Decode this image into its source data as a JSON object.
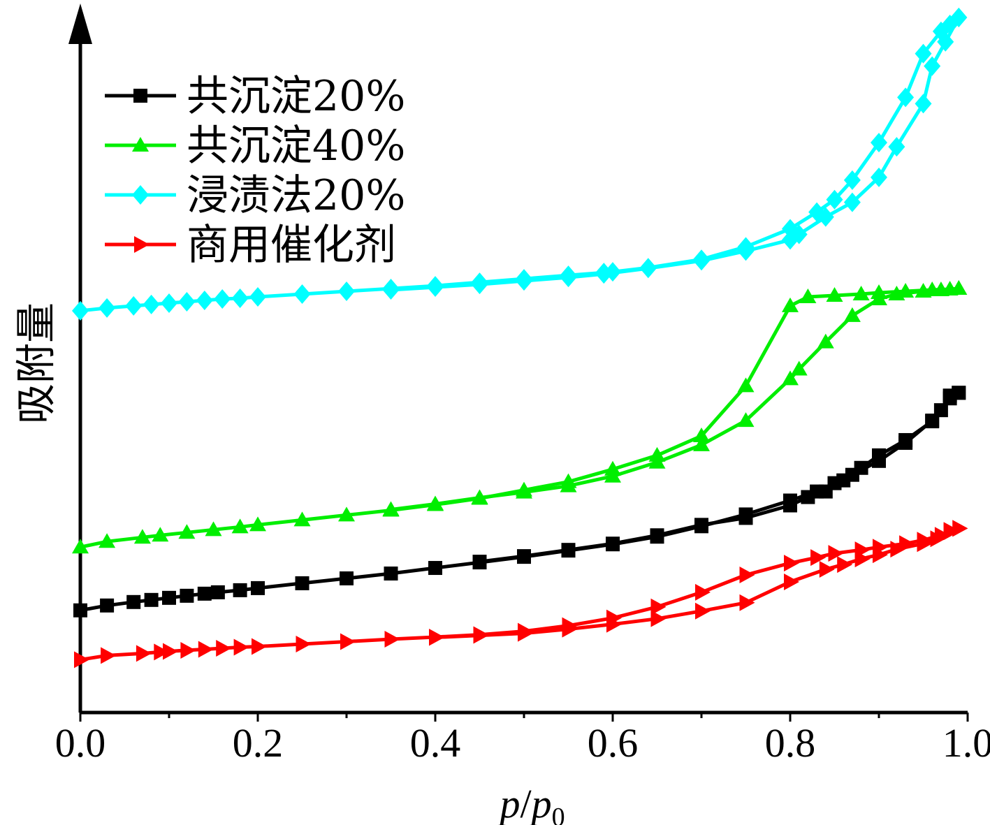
{
  "chart_data": {
    "type": "line",
    "xlabel": {
      "italic_p": "p",
      "slash": "/",
      "italic_p0": "p",
      "subscript": "0"
    },
    "ylabel": "吸附量",
    "xlim": [
      0,
      1.0
    ],
    "ylim": [
      0,
      100
    ],
    "y_ticks_shown": false,
    "x_ticks": [
      0.0,
      0.2,
      0.4,
      0.6,
      0.8,
      1.0
    ],
    "x_tick_labels": [
      "0.0",
      "0.2",
      "0.4",
      "0.6",
      "0.8",
      "1.0"
    ],
    "legend_position": "top-left",
    "series": [
      {
        "name": "共沉淀20%",
        "color": "#000000",
        "marker": "square",
        "adsorption": {
          "x": [
            0.0,
            0.03,
            0.06,
            0.08,
            0.1,
            0.12,
            0.14,
            0.155,
            0.18,
            0.2,
            0.25,
            0.3,
            0.35,
            0.4,
            0.45,
            0.5,
            0.55,
            0.6,
            0.65,
            0.7,
            0.75,
            0.8,
            0.83,
            0.85,
            0.87,
            0.9,
            0.93,
            0.96,
            0.98,
            0.99
          ],
          "y": [
            14.7,
            15.4,
            15.9,
            16.2,
            16.5,
            16.8,
            17.1,
            17.3,
            17.6,
            17.9,
            18.6,
            19.3,
            20.0,
            20.8,
            21.6,
            22.4,
            23.3,
            24.2,
            25.3,
            26.8,
            28.5,
            30.5,
            31.8,
            33.0,
            34.2,
            36.2,
            38.8,
            42.0,
            45.2,
            46.0
          ]
        },
        "desorption": {
          "x": [
            0.99,
            0.98,
            0.97,
            0.96,
            0.93,
            0.9,
            0.88,
            0.86,
            0.84,
            0.82,
            0.8,
            0.75,
            0.7,
            0.65,
            0.6,
            0.55,
            0.5,
            0.45
          ],
          "y": [
            46.0,
            45.6,
            43.5,
            41.9,
            39.2,
            37.0,
            35.2,
            33.4,
            31.8,
            31.0,
            29.8,
            28.0,
            27.0,
            25.5,
            24.3,
            23.4,
            22.5,
            21.7
          ]
        }
      },
      {
        "name": "共沉淀40%",
        "color": "#00ee00",
        "marker": "triangle-up",
        "adsorption": {
          "x": [
            0.0,
            0.03,
            0.07,
            0.09,
            0.12,
            0.15,
            0.18,
            0.2,
            0.25,
            0.3,
            0.35,
            0.4,
            0.45,
            0.5,
            0.55,
            0.6,
            0.65,
            0.7,
            0.75,
            0.8,
            0.82,
            0.85,
            0.88,
            0.9,
            0.93,
            0.96,
            0.98,
            0.99
          ],
          "y": [
            23.8,
            24.6,
            25.2,
            25.5,
            25.9,
            26.3,
            26.7,
            27.0,
            27.7,
            28.4,
            29.1,
            29.9,
            30.8,
            32.0,
            33.2,
            35.0,
            37.0,
            39.8,
            47.0,
            58.5,
            59.8,
            60.0,
            60.2,
            60.4,
            60.6,
            60.8,
            60.9,
            61.0
          ]
        },
        "desorption": {
          "x": [
            0.99,
            0.97,
            0.95,
            0.92,
            0.9,
            0.87,
            0.84,
            0.81,
            0.8,
            0.75,
            0.7,
            0.65,
            0.6,
            0.55,
            0.5,
            0.45,
            0.4,
            0.35
          ],
          "y": [
            61.0,
            60.8,
            60.6,
            60.2,
            59.5,
            57.1,
            53.3,
            49.4,
            48.0,
            42.0,
            38.5,
            36.0,
            34.0,
            32.6,
            31.7,
            30.9,
            30.0,
            29.2
          ]
        }
      },
      {
        "name": "浸渍法20%",
        "color": "#00ffff",
        "marker": "diamond",
        "adsorption": {
          "x": [
            0.0,
            0.03,
            0.06,
            0.08,
            0.1,
            0.12,
            0.14,
            0.16,
            0.18,
            0.2,
            0.25,
            0.3,
            0.35,
            0.4,
            0.45,
            0.5,
            0.55,
            0.59,
            0.6,
            0.64,
            0.7,
            0.75,
            0.8,
            0.83,
            0.85,
            0.87,
            0.9,
            0.93,
            0.95,
            0.97,
            0.98,
            0.99
          ],
          "y": [
            57.8,
            58.2,
            58.5,
            58.7,
            58.9,
            59.1,
            59.3,
            59.5,
            59.6,
            59.8,
            60.2,
            60.6,
            61.0,
            61.4,
            61.9,
            62.4,
            62.9,
            63.3,
            63.4,
            64.0,
            65.2,
            67.0,
            69.6,
            72.0,
            73.8,
            76.6,
            82.0,
            88.5,
            94.8,
            98.0,
            99.0,
            100.0
          ]
        },
        "desorption": {
          "x": [
            0.99,
            0.975,
            0.96,
            0.95,
            0.92,
            0.9,
            0.87,
            0.84,
            0.81,
            0.8,
            0.75,
            0.7,
            0.64,
            0.59,
            0.55,
            0.5,
            0.45,
            0.4,
            0.35
          ],
          "y": [
            100.0,
            96.5,
            93.0,
            87.6,
            81.4,
            77.0,
            73.4,
            71.3,
            68.8,
            68.0,
            66.4,
            65.0,
            63.9,
            63.1,
            62.6,
            62.1,
            61.6,
            61.2,
            60.8
          ]
        }
      },
      {
        "name": "商用催化剂",
        "color": "#ff0000",
        "marker": "triangle-right",
        "adsorption": {
          "x": [
            0.0,
            0.03,
            0.07,
            0.09,
            0.1,
            0.12,
            0.14,
            0.16,
            0.18,
            0.2,
            0.25,
            0.3,
            0.35,
            0.4,
            0.45,
            0.5,
            0.55,
            0.6,
            0.65,
            0.7,
            0.75,
            0.8,
            0.83,
            0.85,
            0.88,
            0.9,
            0.93,
            0.95,
            0.97,
            0.98,
            0.99
          ],
          "y": [
            7.6,
            8.2,
            8.5,
            8.7,
            8.8,
            8.95,
            9.1,
            9.25,
            9.4,
            9.5,
            9.85,
            10.2,
            10.55,
            10.85,
            11.2,
            11.7,
            12.5,
            13.6,
            15.2,
            17.3,
            19.8,
            21.5,
            22.3,
            22.9,
            23.4,
            23.8,
            24.3,
            24.8,
            25.5,
            26.2,
            26.5
          ]
        },
        "desorption": {
          "x": [
            0.99,
            0.98,
            0.965,
            0.95,
            0.92,
            0.9,
            0.88,
            0.86,
            0.84,
            0.8,
            0.75,
            0.7,
            0.65,
            0.6,
            0.55,
            0.5,
            0.45,
            0.4
          ],
          "y": [
            26.5,
            26.0,
            25.0,
            24.3,
            23.5,
            22.7,
            22.1,
            21.3,
            20.6,
            18.8,
            15.8,
            14.6,
            13.5,
            12.7,
            12.0,
            11.4,
            11.1,
            10.8
          ]
        }
      }
    ]
  }
}
